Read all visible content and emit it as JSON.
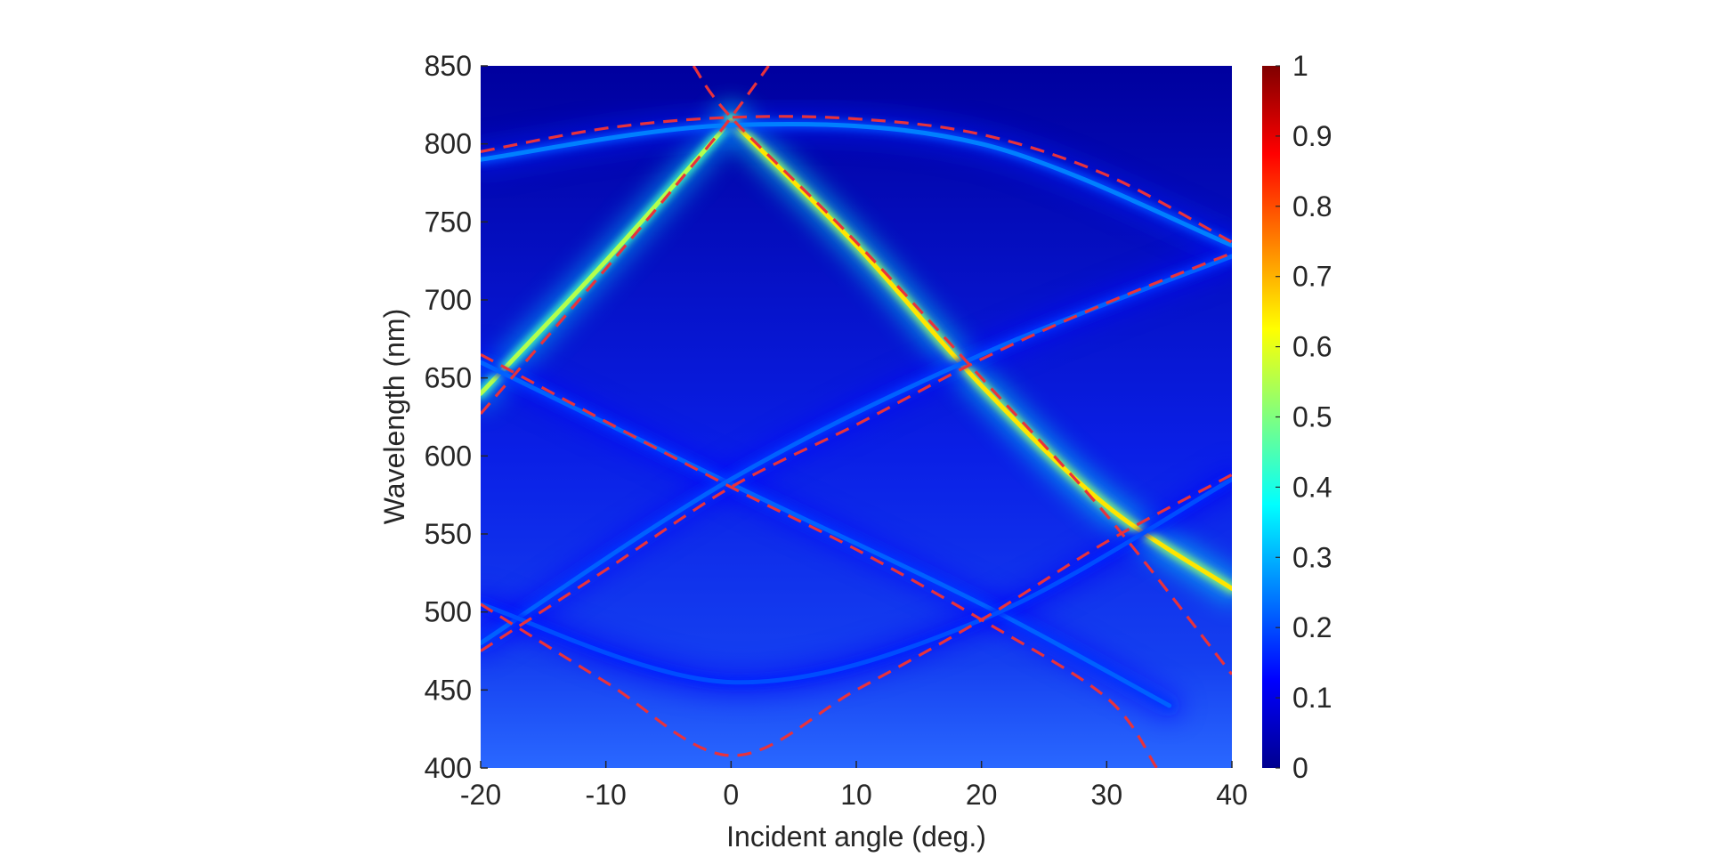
{
  "chart_data": {
    "type": "heatmap",
    "title": "",
    "xlabel": "Incident angle (deg.)",
    "ylabel": "Wavelength (nm)",
    "xlim": [
      -20,
      40
    ],
    "ylim": [
      400,
      850
    ],
    "xticks": [
      "-20",
      "-10",
      "0",
      "10",
      "20",
      "30",
      "40"
    ],
    "yticks": [
      "400",
      "450",
      "500",
      "550",
      "600",
      "650",
      "700",
      "750",
      "800",
      "850"
    ],
    "colorbar": {
      "colormap": "jet",
      "range": [
        0,
        1
      ],
      "ticks": [
        "0",
        "0.1",
        "0.2",
        "0.3",
        "0.4",
        "0.5",
        "0.6",
        "0.7",
        "0.8",
        "0.9",
        "1"
      ]
    },
    "colors": {
      "background_low": "#0000b3",
      "dashed_overlay": "#e8323c",
      "axis_text": "#262626"
    },
    "bright_bands": [
      {
        "name": "band-1",
        "points": [
          [
            -20,
            640
          ],
          [
            -10,
            725
          ],
          [
            0,
            815
          ]
        ],
        "peak": 0.55
      },
      {
        "name": "band-2",
        "points": [
          [
            0,
            815
          ],
          [
            10,
            735
          ],
          [
            20,
            645
          ],
          [
            30,
            568
          ],
          [
            40,
            515
          ]
        ],
        "peak": 0.65
      },
      {
        "name": "band-3",
        "points": [
          [
            -20,
            790
          ],
          [
            0,
            812
          ],
          [
            20,
            800
          ],
          [
            40,
            735
          ]
        ],
        "peak": 0.25
      },
      {
        "name": "band-4",
        "points": [
          [
            -20,
            660
          ],
          [
            0,
            582
          ],
          [
            20,
            505
          ],
          [
            35,
            440
          ]
        ],
        "peak": 0.22
      },
      {
        "name": "band-5",
        "points": [
          [
            -20,
            480
          ],
          [
            0,
            585
          ],
          [
            20,
            665
          ],
          [
            40,
            728
          ]
        ],
        "peak": 0.22
      },
      {
        "name": "band-6",
        "points": [
          [
            -20,
            505
          ],
          [
            0,
            455
          ],
          [
            20,
            495
          ],
          [
            40,
            585
          ]
        ],
        "peak": 0.2
      }
    ],
    "dashed_curves": [
      {
        "name": "dashed-curve-1",
        "points": [
          [
            -20,
            795
          ],
          [
            -10,
            810
          ],
          [
            0,
            817
          ],
          [
            10,
            816
          ],
          [
            20,
            806
          ],
          [
            30,
            780
          ],
          [
            40,
            737
          ]
        ]
      },
      {
        "name": "dashed-curve-2",
        "points": [
          [
            -20,
            627
          ],
          [
            -10,
            720
          ],
          [
            -3,
            787
          ],
          [
            0,
            817
          ],
          [
            3,
            850
          ]
        ]
      },
      {
        "name": "dashed-curve-3",
        "points": [
          [
            -3,
            850
          ],
          [
            0,
            817
          ],
          [
            10,
            737
          ],
          [
            20,
            650
          ],
          [
            30,
            562
          ],
          [
            40,
            460
          ]
        ]
      },
      {
        "name": "dashed-curve-4",
        "points": [
          [
            -20,
            665
          ],
          [
            -10,
            622
          ],
          [
            0,
            580
          ],
          [
            10,
            540
          ],
          [
            20,
            495
          ],
          [
            30,
            445
          ],
          [
            34,
            400
          ]
        ]
      },
      {
        "name": "dashed-curve-5",
        "points": [
          [
            -20,
            475
          ],
          [
            -10,
            527
          ],
          [
            0,
            580
          ],
          [
            10,
            620
          ],
          [
            20,
            662
          ],
          [
            30,
            698
          ],
          [
            40,
            730
          ]
        ]
      },
      {
        "name": "dashed-curve-6",
        "points": [
          [
            -20,
            505
          ],
          [
            -10,
            455
          ],
          [
            0,
            408
          ],
          [
            10,
            450
          ],
          [
            20,
            495
          ],
          [
            30,
            545
          ],
          [
            40,
            588
          ]
        ]
      }
    ]
  }
}
